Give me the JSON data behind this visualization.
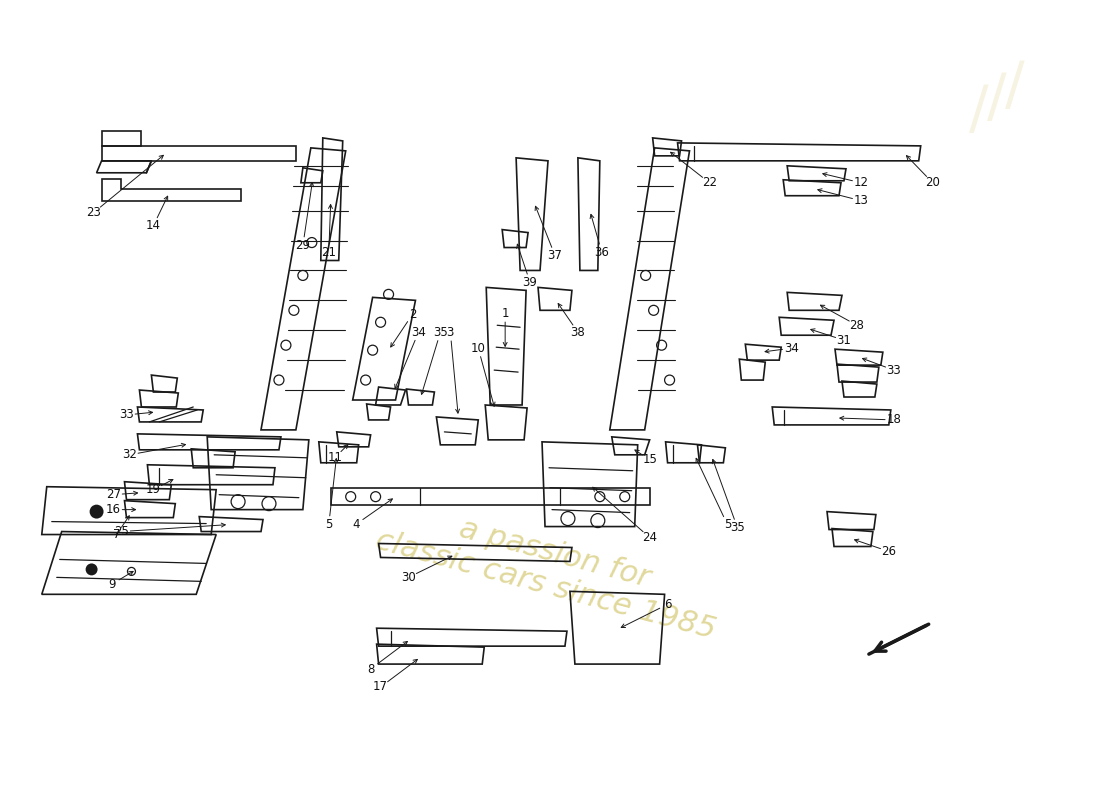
{
  "background_color": "#ffffff",
  "line_color": "#1a1a1a",
  "label_color": "#111111",
  "watermark_color": "#c8b84a",
  "watermark_alpha": 0.55,
  "label_fontsize": 8.5,
  "lw": 1.2
}
